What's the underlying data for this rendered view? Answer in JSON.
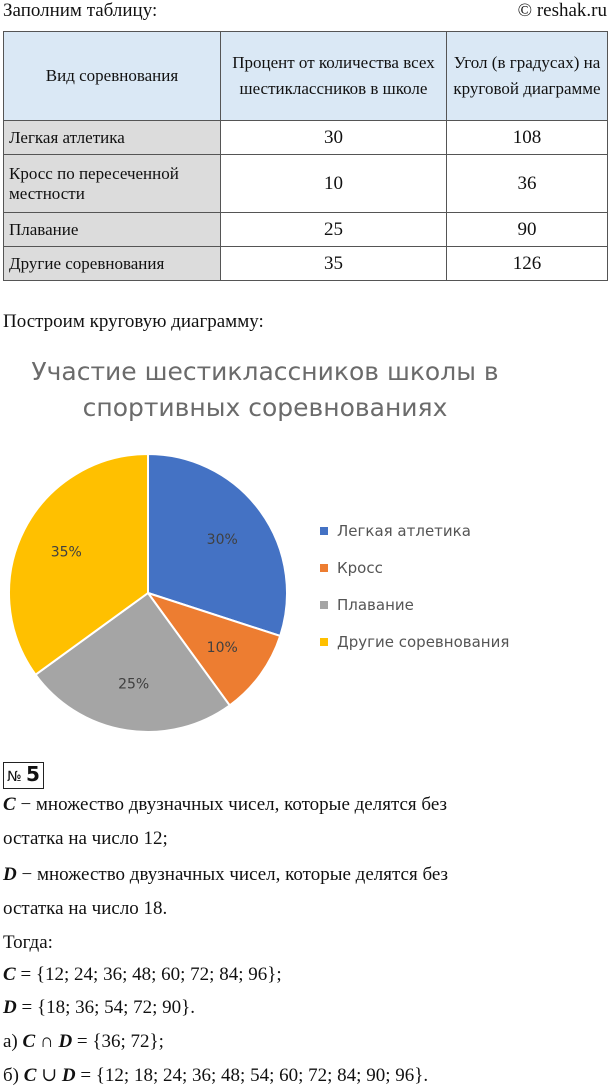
{
  "header": {
    "intro": "Заполним таблицу:",
    "site": "© reshak.ru"
  },
  "table": {
    "columns": [
      "Вид соревнования",
      "Процент от количества всех шестиклассников в школе",
      "Угол (в градусах) на круговой диаграмме"
    ],
    "rows": [
      {
        "name": "Легкая атлетика",
        "percent": "30",
        "angle": "108"
      },
      {
        "name": "Кросс по пересеченной местности",
        "percent": "10",
        "angle": "36"
      },
      {
        "name": "Плавание",
        "percent": "25",
        "angle": "90"
      },
      {
        "name": "Другие соревнования",
        "percent": "35",
        "angle": "126"
      }
    ]
  },
  "lead2": "Построим круговую диаграмму:",
  "chart_data": {
    "type": "pie",
    "title": "Участие шестиклассников школы в спортивных соревнованиях",
    "categories": [
      "Легкая атлетика",
      "Кросс",
      "Плавание",
      "Другие соревнования"
    ],
    "values": [
      30,
      10,
      25,
      35
    ],
    "labels": [
      "30%",
      "10%",
      "25%",
      "35%"
    ],
    "colors": [
      "#4472c4",
      "#ed7d31",
      "#a5a5a5",
      "#ffc000"
    ],
    "legend": "right"
  },
  "task": {
    "badge_no": "№",
    "badge_num": "5",
    "c_var": "C",
    "c_def": " − множество двузначных чисел, которые делятся без",
    "c_def2": "остатка на число 12;",
    "d_var": "D",
    "d_def": " − множество двузначных чисел, которые делятся без",
    "d_def2": "остатка на число 18.",
    "then": "Тогда:",
    "c_set": " = {12; 24; 36; 48; 60; 72; 84; 96};",
    "d_set": " = {18; 36; 54; 72; 90}.",
    "a_label": "а) ",
    "a_op": " ∩ ",
    "a_res": " = {36; 72};",
    "b_label": "б) ",
    "b_op": " ∪ ",
    "b_res": " = {12; 18; 24; 36; 48; 54; 60; 72; 84; 90; 96}."
  }
}
